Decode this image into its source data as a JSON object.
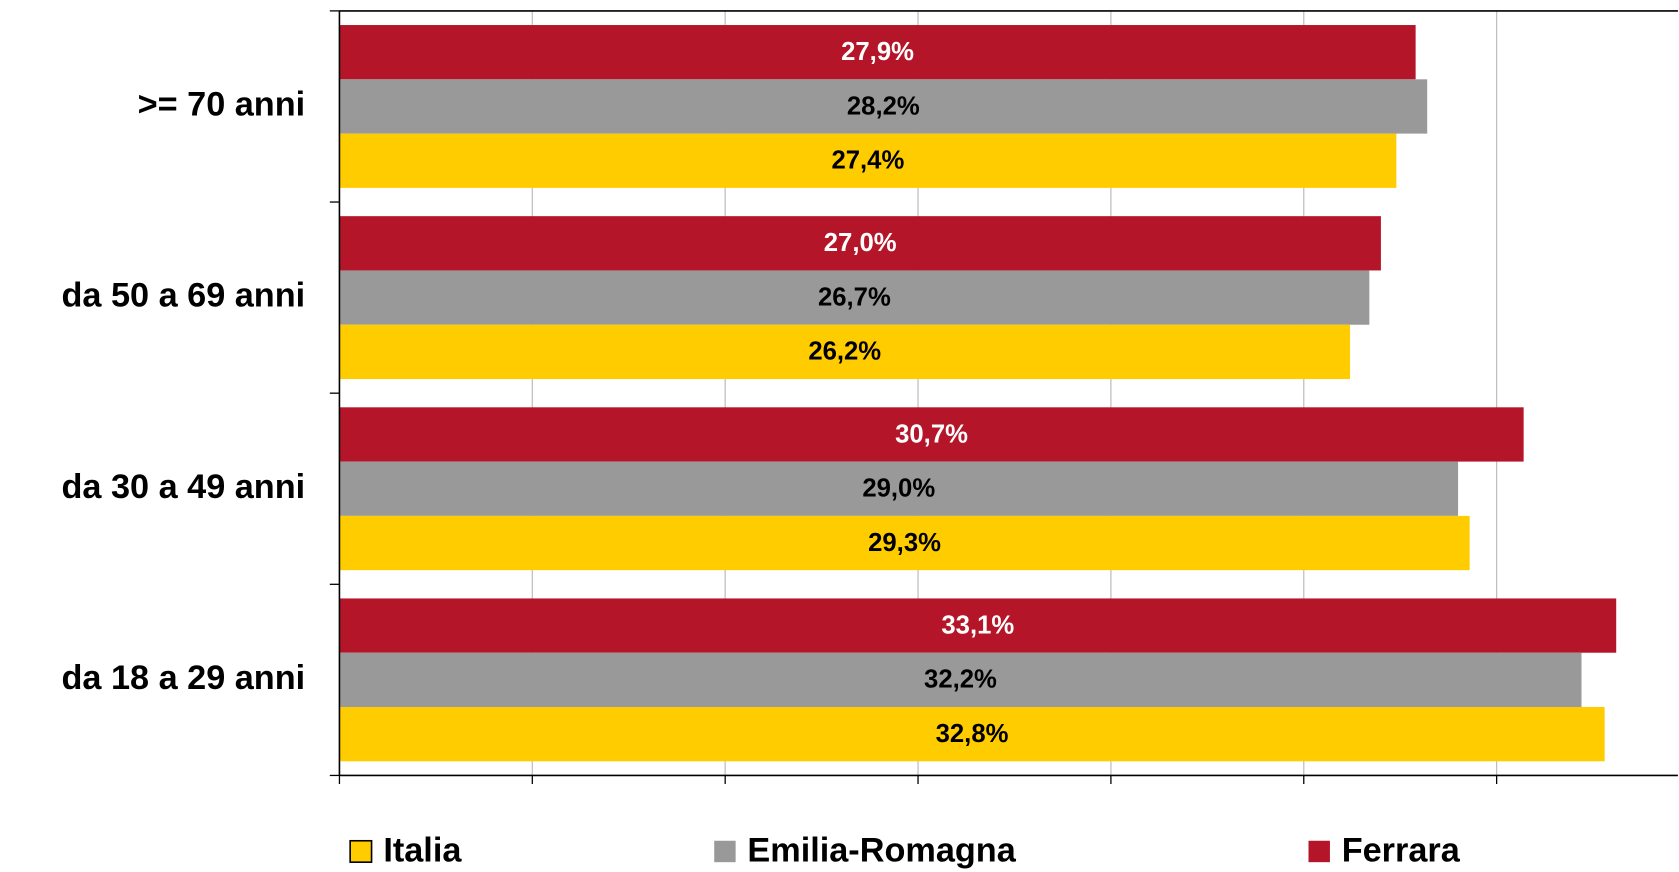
{
  "chart_data": {
    "type": "bar",
    "orientation": "horizontal",
    "categories": [
      ">= 70 anni",
      "da 50 a 69 anni",
      "da 30 a 49 anni",
      "da 18 a 29 anni"
    ],
    "series": [
      {
        "name": "Italia",
        "color": "#ffcc00",
        "label_color": "#000000",
        "values": [
          27.4,
          26.2,
          29.3,
          32.8
        ],
        "value_labels": [
          "27,4%",
          "26,2%",
          "29,3%",
          "32,8%"
        ]
      },
      {
        "name": "Emilia-Romagna",
        "color": "#999999",
        "label_color": "#000000",
        "values": [
          28.2,
          26.7,
          29.0,
          32.2
        ],
        "value_labels": [
          "28,2%",
          "26,7%",
          "29,0%",
          "32,2%"
        ]
      },
      {
        "name": "Ferrara",
        "color": "#b51528",
        "label_color": "#ffffff",
        "values": [
          27.9,
          27.0,
          30.7,
          33.1
        ],
        "value_labels": [
          "27,9%",
          "27,0%",
          "30,7%",
          "33,1%"
        ]
      }
    ],
    "xlim": [
      0,
      34.7
    ],
    "xticks": [
      0,
      5,
      10,
      15,
      20,
      25,
      30
    ],
    "grid": true,
    "legend": "bottom"
  }
}
